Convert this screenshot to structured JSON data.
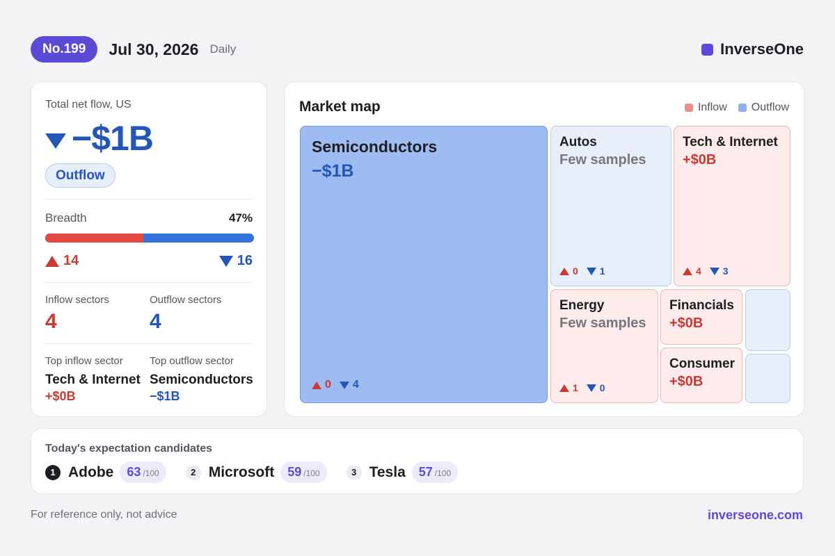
{
  "header": {
    "badge": "No.199",
    "date": "Jul 30, 2026",
    "frequency": "Daily",
    "brand": "InverseOne",
    "brand_color": "#5b4ad6"
  },
  "summary": {
    "label": "Total net flow, US",
    "value": "−$1B",
    "direction_icon": "down-triangle-icon",
    "direction_label": "Outflow",
    "breadth_label": "Breadth",
    "breadth_pct": "47%",
    "breadth_fraction": 0.47,
    "up_count": "14",
    "down_count": "16",
    "inflow_sectors_label": "Inflow sectors",
    "inflow_sectors": "4",
    "outflow_sectors_label": "Outflow sectors",
    "outflow_sectors": "4",
    "top_inflow_label": "Top inflow sector",
    "top_inflow_name": "Tech & Internet",
    "top_inflow_value": "+$0B",
    "top_outflow_label": "Top outflow sector",
    "top_outflow_name": "Semiconductors",
    "top_outflow_value": "−$1B"
  },
  "market_map": {
    "title": "Market map",
    "legend_inflow": "Inflow",
    "legend_outflow": "Outflow",
    "inflow_color": "#e8908b",
    "outflow_color": "#8fb1ea",
    "tiles": {
      "semiconductors": {
        "name": "Semiconductors",
        "value": "−$1B",
        "up": "0",
        "down": "4"
      },
      "autos": {
        "name": "Autos",
        "value": "Few samples",
        "up": "0",
        "down": "1"
      },
      "tech": {
        "name": "Tech & Internet",
        "value": "+$0B",
        "up": "4",
        "down": "3"
      },
      "energy": {
        "name": "Energy",
        "value": "Few samples",
        "up": "1",
        "down": "0"
      },
      "financials": {
        "name": "Financials",
        "value": "+$0B"
      },
      "consumer": {
        "name": "Consumer",
        "value": "+$0B"
      }
    }
  },
  "candidates": {
    "title": "Today's expectation candidates",
    "items": [
      {
        "rank": "1",
        "name": "Adobe",
        "score": "63",
        "max": "/100"
      },
      {
        "rank": "2",
        "name": "Microsoft",
        "score": "59",
        "max": "/100"
      },
      {
        "rank": "3",
        "name": "Tesla",
        "score": "57",
        "max": "/100"
      }
    ]
  },
  "footer": {
    "disclaimer": "For reference only, not advice",
    "site": "inverseone.com"
  }
}
